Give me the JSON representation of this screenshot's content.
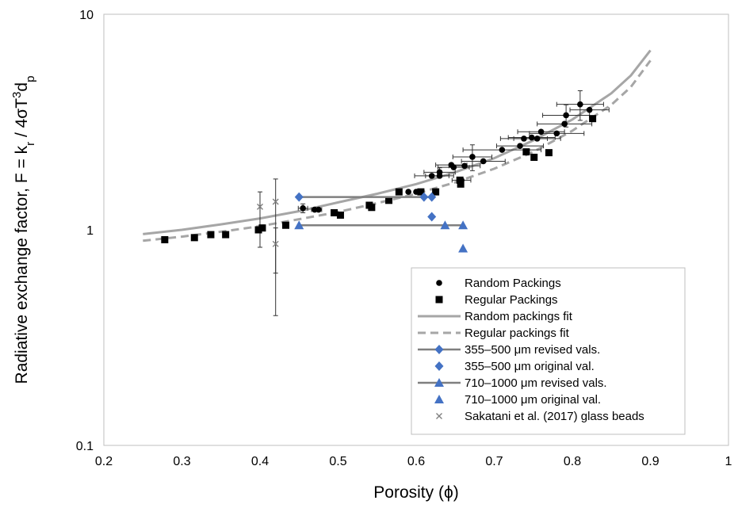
{
  "chart_data": {
    "type": "scatter",
    "xlabel": "Porosity (ϕ)",
    "ylabel": "Radiative exchange factor, F = k_r / 4σT³d_p",
    "x_scale": "linear",
    "y_scale": "log",
    "xlim": [
      0.2,
      1
    ],
    "ylim": [
      0.1,
      10
    ],
    "x_ticks": [
      "0.2",
      "0.3",
      "0.4",
      "0.5",
      "0.6",
      "0.7",
      "0.8",
      "0.9",
      "1"
    ],
    "y_ticks": [
      "0.1",
      "1",
      "10"
    ],
    "grid": false,
    "legend_position": "bottom-right",
    "colors": {
      "black": "#000000",
      "fit_gray": "#a6a6a6",
      "blue": "#4472c4",
      "revised_line": "#7f7f7f",
      "sakatani": "#7f7f7f"
    },
    "series": [
      {
        "name": "Random Packings",
        "marker": "circle",
        "points": [
          {
            "x": 0.455,
            "y": 1.26,
            "xerr": 0.006,
            "yerr": 0.06
          },
          {
            "x": 0.47,
            "y": 1.24,
            "xerr": 0.004
          },
          {
            "x": 0.475,
            "y": 1.24,
            "xerr": 0.004
          },
          {
            "x": 0.59,
            "y": 1.5
          },
          {
            "x": 0.6,
            "y": 1.5
          },
          {
            "x": 0.62,
            "y": 1.78,
            "xerr": 0.022
          },
          {
            "x": 0.63,
            "y": 1.85,
            "xerr": 0.02,
            "yerr": 0.09
          },
          {
            "x": 0.63,
            "y": 1.78,
            "xerr": 0.018
          },
          {
            "x": 0.645,
            "y": 2.0,
            "xerr": 0.02
          },
          {
            "x": 0.648,
            "y": 1.95,
            "xerr": 0.02
          },
          {
            "x": 0.658,
            "y": 1.7,
            "xerr": 0.012
          },
          {
            "x": 0.662,
            "y": 1.98,
            "xerr": 0.02
          },
          {
            "x": 0.672,
            "y": 2.18,
            "xerr": 0.025,
            "yerr": 0.3
          },
          {
            "x": 0.686,
            "y": 2.08,
            "xerr": 0.028
          },
          {
            "x": 0.71,
            "y": 2.35,
            "xerr": 0.05
          },
          {
            "x": 0.733,
            "y": 2.45,
            "xerr": 0.03
          },
          {
            "x": 0.738,
            "y": 2.65,
            "xerr": 0.03
          },
          {
            "x": 0.748,
            "y": 2.68,
            "xerr": 0.03
          },
          {
            "x": 0.755,
            "y": 2.65,
            "xerr": 0.03
          },
          {
            "x": 0.76,
            "y": 2.85,
            "xerr": 0.03
          },
          {
            "x": 0.78,
            "y": 2.8,
            "xerr": 0.035
          },
          {
            "x": 0.79,
            "y": 3.1,
            "xerr": 0.035
          },
          {
            "x": 0.792,
            "y": 3.4,
            "xerr": 0.03,
            "yerr": 0.4
          },
          {
            "x": 0.81,
            "y": 3.82,
            "xerr": 0.03,
            "yerr": 0.6
          },
          {
            "x": 0.822,
            "y": 3.6,
            "xerr": 0.025
          }
        ]
      },
      {
        "name": "Regular Packings",
        "marker": "square",
        "points": [
          {
            "x": 0.278,
            "y": 0.9
          },
          {
            "x": 0.316,
            "y": 0.92
          },
          {
            "x": 0.337,
            "y": 0.95
          },
          {
            "x": 0.356,
            "y": 0.95
          },
          {
            "x": 0.398,
            "y": 1.0
          },
          {
            "x": 0.403,
            "y": 1.02
          },
          {
            "x": 0.433,
            "y": 1.05
          },
          {
            "x": 0.495,
            "y": 1.2
          },
          {
            "x": 0.503,
            "y": 1.17
          },
          {
            "x": 0.54,
            "y": 1.3
          },
          {
            "x": 0.543,
            "y": 1.27
          },
          {
            "x": 0.565,
            "y": 1.37
          },
          {
            "x": 0.578,
            "y": 1.5
          },
          {
            "x": 0.606,
            "y": 1.5
          },
          {
            "x": 0.625,
            "y": 1.5
          },
          {
            "x": 0.656,
            "y": 1.7
          },
          {
            "x": 0.657,
            "y": 1.63
          },
          {
            "x": 0.741,
            "y": 2.3
          },
          {
            "x": 0.751,
            "y": 2.17
          },
          {
            "x": 0.77,
            "y": 2.28
          },
          {
            "x": 0.826,
            "y": 3.28
          }
        ]
      },
      {
        "name": "Random packings fit",
        "style": "solid-line",
        "points": [
          {
            "x": 0.25,
            "y": 0.955
          },
          {
            "x": 0.3,
            "y": 1.0
          },
          {
            "x": 0.35,
            "y": 1.06
          },
          {
            "x": 0.4,
            "y": 1.13
          },
          {
            "x": 0.45,
            "y": 1.22
          },
          {
            "x": 0.5,
            "y": 1.34
          },
          {
            "x": 0.55,
            "y": 1.47
          },
          {
            "x": 0.6,
            "y": 1.63
          },
          {
            "x": 0.65,
            "y": 1.85
          },
          {
            "x": 0.7,
            "y": 2.15
          },
          {
            "x": 0.75,
            "y": 2.6
          },
          {
            "x": 0.8,
            "y": 3.25
          },
          {
            "x": 0.85,
            "y": 4.3
          },
          {
            "x": 0.875,
            "y": 5.2
          },
          {
            "x": 0.9,
            "y": 6.8
          }
        ]
      },
      {
        "name": "Regular packings fit",
        "style": "dashed-line",
        "points": [
          {
            "x": 0.25,
            "y": 0.89
          },
          {
            "x": 0.3,
            "y": 0.93
          },
          {
            "x": 0.35,
            "y": 0.98
          },
          {
            "x": 0.4,
            "y": 1.04
          },
          {
            "x": 0.45,
            "y": 1.12
          },
          {
            "x": 0.5,
            "y": 1.21
          },
          {
            "x": 0.55,
            "y": 1.33
          },
          {
            "x": 0.6,
            "y": 1.47
          },
          {
            "x": 0.65,
            "y": 1.66
          },
          {
            "x": 0.7,
            "y": 1.92
          },
          {
            "x": 0.75,
            "y": 2.3
          },
          {
            "x": 0.8,
            "y": 2.88
          },
          {
            "x": 0.85,
            "y": 3.8
          },
          {
            "x": 0.875,
            "y": 4.6
          },
          {
            "x": 0.9,
            "y": 6.1
          }
        ]
      },
      {
        "name": "355–500 μm revised vals.",
        "marker": "diamond",
        "style": "solid-line",
        "points": [
          {
            "x": 0.45,
            "y": 1.42
          },
          {
            "x": 0.62,
            "y": 1.42
          }
        ]
      },
      {
        "name": "355–500 μm original val.",
        "marker": "diamond",
        "points": [
          {
            "x": 0.61,
            "y": 1.42
          },
          {
            "x": 0.62,
            "y": 1.15
          }
        ]
      },
      {
        "name": "710–1000 μm revised vals.",
        "marker": "triangle",
        "style": "solid-line",
        "points": [
          {
            "x": 0.45,
            "y": 1.05
          },
          {
            "x": 0.66,
            "y": 1.05
          }
        ]
      },
      {
        "name": "710–1000 μm original val.",
        "marker": "triangle",
        "points": [
          {
            "x": 0.637,
            "y": 1.05
          },
          {
            "x": 0.66,
            "y": 0.82
          }
        ]
      },
      {
        "name": "Sakatani et al. (2017) glass beads",
        "marker": "x",
        "points": [
          {
            "x": 0.4,
            "y": 1.28,
            "ylow": 0.83,
            "yhigh": 1.5
          },
          {
            "x": 0.42,
            "y": 1.35,
            "ylow": 0.63,
            "yhigh": 1.72
          },
          {
            "x": 0.42,
            "y": 0.86,
            "ylow": 0.4,
            "yhigh": 1.02
          }
        ]
      }
    ]
  }
}
